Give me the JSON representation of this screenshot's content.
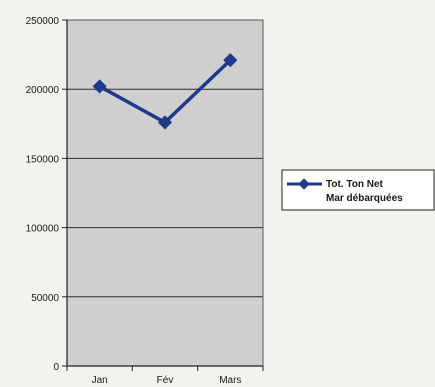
{
  "chart_data": {
    "type": "line",
    "categories": [
      "Jan",
      "Fév",
      "Mars"
    ],
    "series": [
      {
        "name": "Tot. Ton Net Mar débarquées",
        "name_lines": [
          "Tot. Ton Net",
          "Mar débarquées"
        ],
        "values": [
          202000,
          176000,
          221000
        ],
        "color": "#1f3a8a"
      }
    ],
    "yticks": [
      0,
      50000,
      100000,
      150000,
      200000,
      250000
    ],
    "ytick_labels": [
      "0",
      "50000",
      "100000",
      "150000",
      "200000",
      "250000"
    ],
    "ylim": [
      0,
      250000
    ],
    "grid": true,
    "plot_background": "#cfcfcf",
    "legend_position": "right"
  }
}
